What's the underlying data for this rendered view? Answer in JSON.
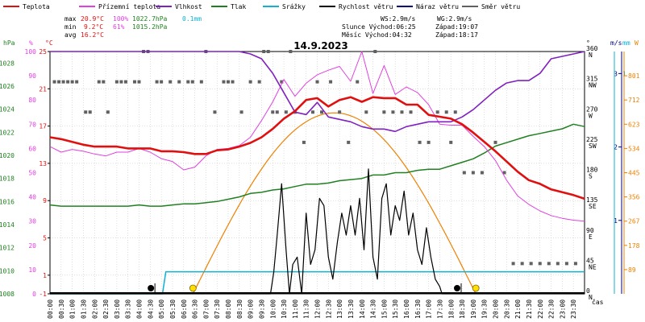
{
  "legend": {
    "items": [
      {
        "label": "Teplota",
        "color": "#e01010",
        "kind": "line"
      },
      {
        "label": "Přízemní teplota",
        "color": "#e040e0",
        "kind": "line"
      },
      {
        "label": "Vlhkost",
        "color": "#8020c0",
        "kind": "line"
      },
      {
        "label": "Tlak",
        "color": "#208020",
        "kind": "line"
      },
      {
        "label": "Srážky",
        "color": "#10b0d0",
        "kind": "line"
      },
      {
        "label": "Rychlost větru",
        "color": "#000000",
        "kind": "line"
      },
      {
        "label": "Náraz větru",
        "color": "#000080",
        "kind": "line"
      },
      {
        "label": "Směr větru",
        "color": "#606060",
        "kind": "line"
      }
    ]
  },
  "stats": {
    "max_label": "max",
    "min_label": "min",
    "avg_label": "avg",
    "max_temp": "20.9°C",
    "max_hum": "100%",
    "max_press": "1022.7hPa",
    "max_rain": "0.1mm",
    "min_temp": "9.2°C",
    "min_hum": "61%",
    "min_press": "1015.2hPa",
    "avg_temp": "16.2°C",
    "ws": "WS:2.9m/s",
    "wg": "WG:2.9m/s",
    "sun_rise": "Slunce Východ:06:25",
    "sun_set": "Západ:19:07",
    "moon_rise": "Měsíc  Východ:04:32",
    "moon_set": "Západ:18:17"
  },
  "colors": {
    "temp": "#e01010",
    "ground": "#e040e0",
    "hum": "#8020c0",
    "press": "#208020",
    "rain": "#10b0d0",
    "wind": "#000000",
    "gust": "#000080",
    "dir": "#606060",
    "sun": "#f08000",
    "grid": "#c8c8c8",
    "frame": "#000000"
  },
  "chart_data": {
    "type": "line",
    "title": "14.9.2023",
    "date": "14.9.2023",
    "xlabel": "čas",
    "x_ticks": [
      "00:00",
      "00:30",
      "01:00",
      "01:30",
      "02:00",
      "02:30",
      "03:00",
      "03:30",
      "04:00",
      "04:30",
      "05:00",
      "05:30",
      "06:00",
      "06:30",
      "07:00",
      "07:30",
      "08:00",
      "08:30",
      "09:00",
      "09:30",
      "10:00",
      "10:30",
      "11:00",
      "11:30",
      "12:00",
      "12:30",
      "13:00",
      "13:30",
      "14:00",
      "14:30",
      "15:00",
      "15:30",
      "16:00",
      "16:30",
      "17:00",
      "17:30",
      "18:00",
      "18:30",
      "19:00",
      "19:30",
      "20:00",
      "20:30",
      "21:00",
      "21:30",
      "22:00",
      "22:30",
      "23:00",
      "23:30"
    ],
    "axes": {
      "pressure": {
        "unit": "hPa",
        "ticks": [
          "1008",
          "1010",
          "1012",
          "1014",
          "1016",
          "1018",
          "1020",
          "1022",
          "1024",
          "1026",
          "1028"
        ],
        "range": [
          1008,
          1029
        ]
      },
      "humidity": {
        "unit": "%",
        "ticks": [
          "0",
          "10",
          "20",
          "30",
          "40",
          "50",
          "60",
          "70",
          "80",
          "90",
          "100"
        ],
        "range": [
          0,
          100
        ]
      },
      "temperature": {
        "unit": "°C",
        "ticks": [
          "-1",
          "1",
          "5",
          "9",
          "13",
          "17",
          "21",
          "25"
        ],
        "range": [
          -1,
          25
        ]
      },
      "direction": {
        "unit": "°",
        "ticks": [
          {
            "deg": "0",
            "dir": "N"
          },
          {
            "deg": "45",
            "dir": "NE"
          },
          {
            "deg": "90",
            "dir": "E"
          },
          {
            "deg": "135",
            "dir": "SE"
          },
          {
            "deg": "180",
            "dir": "S"
          },
          {
            "deg": "225",
            "dir": "SW"
          },
          {
            "deg": "270",
            "dir": "W"
          },
          {
            "deg": "315",
            "dir": "NW"
          },
          {
            "deg": "360",
            "dir": "N"
          }
        ],
        "range": [
          0,
          360
        ]
      },
      "wind": {
        "unit": "m/s",
        "ticks": [
          "1",
          "2",
          "3"
        ],
        "range": [
          0,
          3.3
        ]
      },
      "rain": {
        "unit": "mm",
        "ticks": [
          "1"
        ],
        "range": [
          0,
          1.1
        ]
      },
      "solar": {
        "unit": "W",
        "ticks": [
          "89",
          "178",
          "267",
          "356",
          "445",
          "534",
          "623",
          "712",
          "801"
        ],
        "range": [
          0,
          890
        ]
      }
    },
    "series": [
      {
        "name": "Teplota",
        "axis": "temperature",
        "x": [
          0,
          0.5,
          1,
          1.5,
          2,
          2.5,
          3,
          3.5,
          4,
          4.5,
          5,
          5.5,
          6,
          6.5,
          7,
          7.5,
          8,
          8.5,
          9,
          9.5,
          10,
          10.5,
          11,
          11.5,
          12,
          12.5,
          13,
          13.5,
          14,
          14.5,
          15,
          15.5,
          16,
          16.5,
          17,
          17.5,
          18,
          18.5,
          19,
          19.5,
          20,
          20.5,
          21,
          21.5,
          22,
          22.5,
          23,
          23.5,
          24
        ],
        "y": [
          15.8,
          15.6,
          15.3,
          15.0,
          14.8,
          14.8,
          14.8,
          14.6,
          14.6,
          14.6,
          14.3,
          14.3,
          14.2,
          14.0,
          14.0,
          14.4,
          14.5,
          14.8,
          15.2,
          15.8,
          16.7,
          17.8,
          18.6,
          19.8,
          20.0,
          19.1,
          19.8,
          20.1,
          19.6,
          20.1,
          20.0,
          20.0,
          19.3,
          19.3,
          18.2,
          18.0,
          17.8,
          17.2,
          16.3,
          15.3,
          14.3,
          13.2,
          12.1,
          11.2,
          10.8,
          10.2,
          9.9,
          9.6,
          9.2
        ]
      },
      {
        "name": "Přízemní teplota",
        "axis": "temperature",
        "x": [
          0,
          0.5,
          1,
          1.5,
          2,
          2.5,
          3,
          3.5,
          4,
          4.5,
          5,
          5.5,
          6,
          6.5,
          7,
          7.5,
          8,
          8.5,
          9,
          9.5,
          10,
          10.5,
          11,
          11.5,
          12,
          12.5,
          13,
          13.5,
          14,
          14.5,
          15,
          15.5,
          16,
          16.5,
          17,
          17.5,
          18,
          18.5,
          19,
          19.5,
          20,
          20.5,
          21,
          21.5,
          22,
          22.5,
          23,
          23.5,
          24
        ],
        "y": [
          14.8,
          14.2,
          14.5,
          14.3,
          14.0,
          13.8,
          14.2,
          14.2,
          14.6,
          14.2,
          13.5,
          13.2,
          12.3,
          12.6,
          13.8,
          14.5,
          14.6,
          14.9,
          15.8,
          17.6,
          19.6,
          22.0,
          20.2,
          21.6,
          22.5,
          23.0,
          23.4,
          21.8,
          25.0,
          20.5,
          23.5,
          20.4,
          21.2,
          20.6,
          19.3,
          17.2,
          17.1,
          17.1,
          15.9,
          14.8,
          13.3,
          11.2,
          9.5,
          8.6,
          7.9,
          7.4,
          7.1,
          6.9,
          6.8
        ]
      },
      {
        "name": "Vlhkost",
        "axis": "humidity",
        "x": [
          0,
          0.5,
          1,
          1.5,
          2,
          2.5,
          3,
          3.5,
          4,
          4.5,
          5,
          5.5,
          6,
          6.5,
          7,
          7.5,
          8,
          8.5,
          9,
          9.5,
          10,
          10.5,
          11,
          11.5,
          12,
          12.5,
          13,
          13.5,
          14,
          14.5,
          15,
          15.5,
          16,
          16.5,
          17,
          17.5,
          18,
          18.5,
          19,
          19.5,
          20,
          20.5,
          21,
          21.5,
          22,
          22.5,
          23,
          23.5,
          24
        ],
        "y": [
          100,
          100,
          100,
          100,
          100,
          100,
          100,
          100,
          100,
          100,
          100,
          100,
          100,
          100,
          100,
          100,
          100,
          100,
          99,
          97,
          91,
          83,
          75,
          74,
          79,
          73,
          72,
          71,
          69,
          68,
          68,
          67,
          69,
          70,
          71,
          71,
          71,
          73,
          76,
          80,
          84,
          87,
          88,
          88,
          91,
          97,
          98,
          99,
          100
        ]
      },
      {
        "name": "Tlak",
        "axis": "pressure",
        "x": [
          0,
          0.5,
          1,
          1.5,
          2,
          2.5,
          3,
          3.5,
          4,
          4.5,
          5,
          5.5,
          6,
          6.5,
          7,
          7.5,
          8,
          8.5,
          9,
          9.5,
          10,
          10.5,
          11,
          11.5,
          12,
          12.5,
          13,
          13.5,
          14,
          14.5,
          15,
          15.5,
          16,
          16.5,
          17,
          17.5,
          18,
          18.5,
          19,
          19.5,
          20,
          20.5,
          21,
          21.5,
          22,
          22.5,
          23,
          23.5,
          24
        ],
        "y": [
          1015.7,
          1015.6,
          1015.6,
          1015.6,
          1015.6,
          1015.6,
          1015.6,
          1015.6,
          1015.7,
          1015.6,
          1015.6,
          1015.7,
          1015.8,
          1015.8,
          1015.9,
          1016.0,
          1016.2,
          1016.4,
          1016.7,
          1016.8,
          1017.0,
          1017.1,
          1017.3,
          1017.5,
          1017.5,
          1017.6,
          1017.8,
          1017.9,
          1018.0,
          1018.3,
          1018.3,
          1018.5,
          1018.5,
          1018.7,
          1018.8,
          1018.8,
          1019.1,
          1019.4,
          1019.7,
          1020.2,
          1020.8,
          1021.1,
          1021.4,
          1021.7,
          1021.9,
          1022.1,
          1022.3,
          1022.7,
          1022.5
        ]
      },
      {
        "name": "Srážky",
        "axis": "rain",
        "x": [
          0,
          5.05,
          5.2,
          24
        ],
        "y": [
          0,
          0,
          0.1,
          0.1
        ]
      },
      {
        "name": "Rychlost větru",
        "axis": "wind",
        "x": [
          0,
          9.9,
          10.05,
          10.2,
          10.4,
          10.6,
          10.75,
          10.9,
          11.1,
          11.3,
          11.5,
          11.7,
          11.9,
          12.1,
          12.3,
          12.5,
          12.7,
          12.9,
          13.1,
          13.3,
          13.5,
          13.7,
          13.9,
          14.1,
          14.3,
          14.5,
          14.7,
          14.9,
          15.1,
          15.3,
          15.5,
          15.7,
          15.9,
          16.1,
          16.3,
          16.5,
          16.7,
          16.9,
          17.1,
          17.3,
          17.5,
          17.6,
          24
        ],
        "y": [
          0,
          0,
          0.3,
          0.8,
          1.5,
          0.6,
          0,
          0.4,
          0.5,
          0,
          1.1,
          0.4,
          0.6,
          1.3,
          1.2,
          0.5,
          0.2,
          0.7,
          1.1,
          0.8,
          1.2,
          0.8,
          1.3,
          0.6,
          1.7,
          0.5,
          0.2,
          1.3,
          1.5,
          0.8,
          1.2,
          1.0,
          1.4,
          0.8,
          1.1,
          0.6,
          0.4,
          0.9,
          0.5,
          0.2,
          0.1,
          0,
          0
        ]
      },
      {
        "name": "Směr větru",
        "axis": "direction",
        "kind": "points",
        "x": [
          0.2,
          0.4,
          0.6,
          0.8,
          1.0,
          1.2,
          1.6,
          1.8,
          2.2,
          2.4,
          2.6,
          3.0,
          3.2,
          3.4,
          3.8,
          4.0,
          4.2,
          4.4,
          4.8,
          5.0,
          5.4,
          5.8,
          6.2,
          6.4,
          6.8,
          7.0,
          7.4,
          7.8,
          8.0,
          8.2,
          8.6,
          9.0,
          9.4,
          9.6,
          9.8,
          10.0,
          10.2,
          10.4,
          10.6,
          10.8,
          11.0,
          11.4,
          11.8,
          12.0,
          12.2,
          12.6,
          13.0,
          13.4,
          13.8,
          14.2,
          14.6,
          15.0,
          15.4,
          15.8,
          16.2,
          16.6,
          17.0,
          17.4,
          17.8,
          18.0,
          18.2,
          18.6,
          19.0,
          19.4,
          20.0,
          20.4,
          20.8,
          21.2,
          21.6,
          22.0,
          22.4,
          22.8,
          23.2,
          23.6
        ],
        "y": [
          315,
          315,
          315,
          315,
          315,
          315,
          270,
          270,
          315,
          315,
          270,
          315,
          315,
          315,
          315,
          315,
          360,
          360,
          315,
          315,
          315,
          315,
          315,
          315,
          315,
          360,
          270,
          315,
          315,
          315,
          270,
          315,
          315,
          360,
          360,
          270,
          270,
          315,
          270,
          360,
          270,
          225,
          270,
          315,
          270,
          315,
          270,
          225,
          315,
          270,
          360,
          270,
          270,
          270,
          270,
          225,
          225,
          270,
          270,
          225,
          270,
          180,
          180,
          180,
          225,
          180,
          45,
          45,
          45,
          45,
          45,
          45,
          45,
          45
        ]
      }
    ],
    "markers": [
      {
        "label": "moonrise",
        "time": 4.53,
        "kind": "moon"
      },
      {
        "label": "sunrise",
        "time": 6.42,
        "kind": "sun"
      },
      {
        "label": "moonset",
        "time": 18.28,
        "kind": "moon"
      },
      {
        "label": "sunset",
        "time": 19.12,
        "kind": "sun"
      }
    ],
    "grid": true,
    "legend_placement": "top"
  }
}
